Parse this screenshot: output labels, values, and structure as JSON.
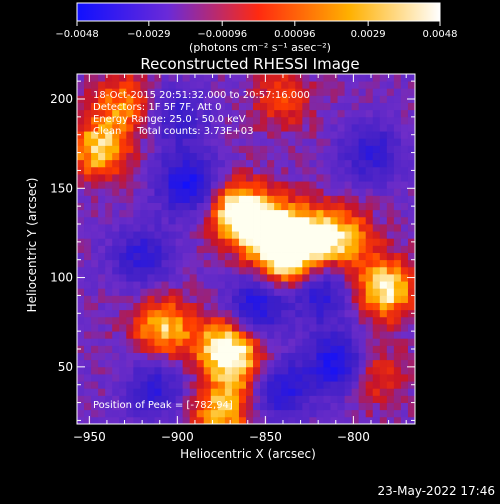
{
  "chart_data": {
    "type": "heatmap",
    "title": "Reconstructed RHESSI Image",
    "xlabel": "Heliocentric X (arcsec)",
    "ylabel": "Heliocentric Y (arcsec)",
    "xlim": [
      -957,
      -765
    ],
    "ylim": [
      18,
      214
    ],
    "x_ticks": [
      -950,
      -900,
      -850,
      -800
    ],
    "y_ticks": [
      50,
      100,
      150,
      200
    ],
    "colorbar": {
      "range": [
        -0.0048,
        0.0048
      ],
      "ticks": [
        -0.0048,
        -0.0029,
        -0.00096,
        0.00096,
        0.0029,
        0.0048
      ],
      "tick_labels": [
        "−0.0048",
        "−0.0029",
        "−0.00096",
        "0.00096",
        "0.0029",
        "0.0048"
      ],
      "label": "(photons cm⁻² s⁻¹ asec⁻²)",
      "colors": [
        "#1010ff",
        "#6a2ad8",
        "#ff2a10",
        "#ffb000",
        "#ffffff"
      ]
    },
    "annotations": [
      "18-Oct-2015 20:51:32.000 to 20:57:16.000",
      "Detectors: 1F 5F 7F, Att 0",
      "Energy Range: 25.0 - 50.0 keV",
      "Clean     Total counts: 3.73E+03"
    ],
    "peak_label": "Position of Peak = [-782,94]",
    "sources": [
      {
        "x": -868,
        "y": 138,
        "peak": 0.0048
      },
      {
        "x": -850,
        "y": 128,
        "peak": 0.0048
      },
      {
        "x": -838,
        "y": 110,
        "peak": 0.0046
      },
      {
        "x": -826,
        "y": 124,
        "peak": 0.004
      },
      {
        "x": -805,
        "y": 122,
        "peak": 0.0036
      },
      {
        "x": -782,
        "y": 94,
        "peak": 0.0048
      },
      {
        "x": -908,
        "y": 72,
        "peak": 0.004
      },
      {
        "x": -874,
        "y": 62,
        "peak": 0.0044
      },
      {
        "x": -862,
        "y": 50,
        "peak": 0.003
      },
      {
        "x": -944,
        "y": 172,
        "peak": 0.0042
      },
      {
        "x": -930,
        "y": 198,
        "peak": 0.003
      },
      {
        "x": -876,
        "y": 24,
        "peak": 0.004
      },
      {
        "x": -790,
        "y": 46,
        "peak": 0.0026
      },
      {
        "x": -840,
        "y": 200,
        "peak": 0.0022
      }
    ],
    "negatives": [
      {
        "x": -893,
        "y": 152,
        "peak": -0.0046
      },
      {
        "x": -855,
        "y": 84,
        "peak": -0.004
      },
      {
        "x": -808,
        "y": 52,
        "peak": -0.0046
      },
      {
        "x": -818,
        "y": 92,
        "peak": -0.0034
      },
      {
        "x": -912,
        "y": 38,
        "peak": -0.003
      },
      {
        "x": -842,
        "y": 38,
        "peak": -0.0038
      },
      {
        "x": -920,
        "y": 112,
        "peak": -0.003
      },
      {
        "x": -900,
        "y": 190,
        "peak": -0.0026
      },
      {
        "x": -790,
        "y": 170,
        "peak": -0.003
      }
    ]
  },
  "footer": {
    "date": "23-May-2022 17:46"
  }
}
